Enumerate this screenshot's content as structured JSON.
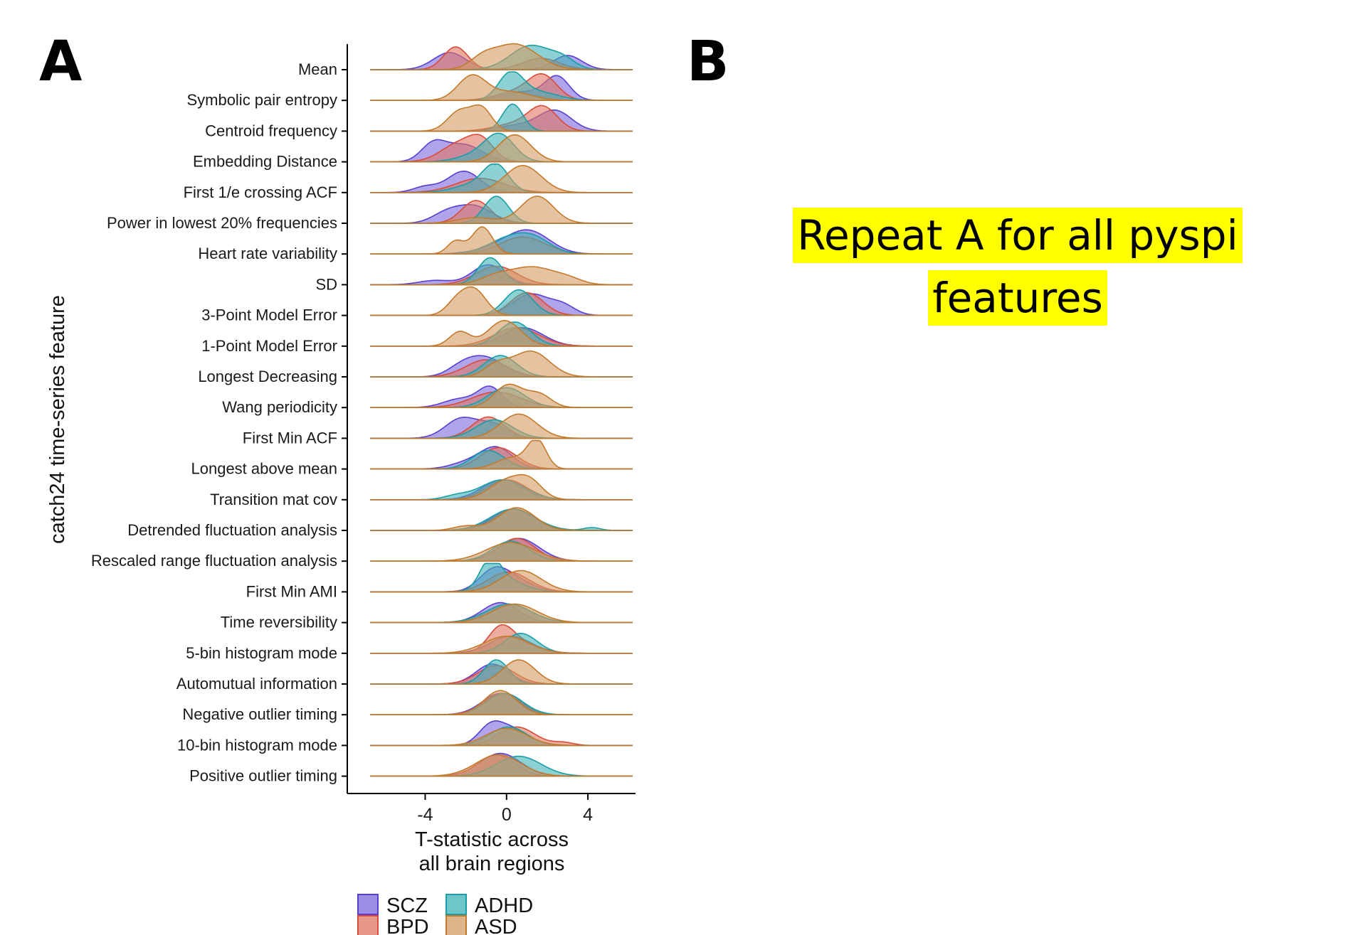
{
  "panels": {
    "a_label": "A",
    "b_label": "B"
  },
  "note": {
    "line1": "Repeat A for all pyspi",
    "line2": "features",
    "highlight_color": "#ffff00"
  },
  "chart_data": {
    "type": "ridgeline",
    "title": "",
    "ylabel": "catch24 time-series feature",
    "xlabel_lines": [
      "T-statistic across",
      "all brain regions"
    ],
    "xlim": [
      -7.2,
      6.2
    ],
    "xticks": [
      -4,
      0,
      4
    ],
    "xtick_labels": [
      "-4",
      "0",
      "4"
    ],
    "grid": false,
    "legend_placement": "bottom",
    "legend": [
      {
        "key": "SCZ",
        "label": "SCZ",
        "fill": "#7b68dd",
        "stroke": "#5b3fd1"
      },
      {
        "key": "ADHD",
        "label": "ADHD",
        "fill": "#3fb3b8",
        "stroke": "#1a9ea5"
      },
      {
        "key": "BPD",
        "label": "BPD",
        "fill": "#e07660",
        "stroke": "#d94c3a"
      },
      {
        "key": "ASD",
        "label": "ASD",
        "fill": "#d39b63",
        "stroke": "#c47a2c"
      }
    ],
    "series_order": [
      "SCZ",
      "BPD",
      "ADHD",
      "ASD"
    ],
    "features": [
      {
        "label": "Mean",
        "d": {
          "SCZ": [
            [
              -2.8,
              0.8,
              0.6
            ],
            [
              3.0,
              0.7,
              0.5
            ]
          ],
          "BPD": [
            [
              -2.5,
              0.6,
              0.8
            ],
            [
              1.7,
              0.9,
              0.4
            ]
          ],
          "ADHD": [
            [
              1.2,
              1.0,
              0.85
            ],
            [
              2.8,
              0.6,
              0.3
            ]
          ],
          "ASD": [
            [
              0.4,
              1.1,
              0.9
            ],
            [
              -1.2,
              0.6,
              0.3
            ]
          ]
        }
      },
      {
        "label": "Symbolic pair entropy",
        "d": {
          "SCZ": [
            [
              2.5,
              0.6,
              0.8
            ],
            [
              0.8,
              1.0,
              0.3
            ]
          ],
          "BPD": [
            [
              1.8,
              0.7,
              0.8
            ],
            [
              0.5,
              1.0,
              0.3
            ]
          ],
          "ADHD": [
            [
              0.2,
              0.6,
              0.9
            ],
            [
              1.5,
              1.0,
              0.3
            ]
          ],
          "ASD": [
            [
              -1.7,
              0.7,
              0.85
            ],
            [
              0.2,
              1.0,
              0.3
            ]
          ]
        }
      },
      {
        "label": "Centroid frequency",
        "d": {
          "SCZ": [
            [
              2.4,
              0.8,
              0.7
            ],
            [
              0.6,
              1.0,
              0.2
            ]
          ],
          "BPD": [
            [
              1.8,
              0.7,
              0.8
            ],
            [
              0.4,
              1.0,
              0.25
            ]
          ],
          "ADHD": [
            [
              0.3,
              0.5,
              0.95
            ]
          ],
          "ASD": [
            [
              -2.3,
              0.6,
              0.7
            ],
            [
              -1.2,
              0.5,
              0.75
            ]
          ]
        }
      },
      {
        "label": "Embedding Distance",
        "d": {
          "SCZ": [
            [
              -3.6,
              0.6,
              0.6
            ],
            [
              -2.1,
              0.9,
              0.6
            ]
          ],
          "BPD": [
            [
              -2.3,
              0.9,
              0.65
            ],
            [
              -1.2,
              0.6,
              0.6
            ]
          ],
          "ADHD": [
            [
              -0.3,
              0.7,
              0.8
            ],
            [
              -1.2,
              1.0,
              0.3
            ]
          ],
          "ASD": [
            [
              0.4,
              0.8,
              0.95
            ]
          ]
        }
      },
      {
        "label": "First 1/e crossing ACF",
        "d": {
          "SCZ": [
            [
              -2.1,
              0.8,
              0.75
            ],
            [
              -4.0,
              0.6,
              0.2
            ]
          ],
          "BPD": [
            [
              -1.3,
              1.2,
              0.5
            ]
          ],
          "ADHD": [
            [
              -0.5,
              0.6,
              0.85
            ],
            [
              -1.5,
              1.0,
              0.3
            ]
          ],
          "ASD": [
            [
              0.8,
              0.9,
              0.95
            ]
          ]
        }
      },
      {
        "label": "Power in lowest 20% frequencies",
        "d": {
          "SCZ": [
            [
              -1.6,
              0.9,
              0.6
            ],
            [
              -3.0,
              0.7,
              0.3
            ]
          ],
          "BPD": [
            [
              -1.5,
              0.7,
              0.8
            ]
          ],
          "ADHD": [
            [
              -0.5,
              0.6,
              0.95
            ]
          ],
          "ASD": [
            [
              1.5,
              0.8,
              0.95
            ],
            [
              -1.5,
              0.9,
              0.2
            ]
          ]
        }
      },
      {
        "label": "Heart rate variability",
        "d": {
          "SCZ": [
            [
              1.2,
              1.0,
              0.65
            ],
            [
              0.0,
              1.2,
              0.3
            ]
          ],
          "BPD": [
            [
              0.8,
              1.1,
              0.6
            ]
          ],
          "ADHD": [
            [
              0.3,
              1.1,
              0.6
            ],
            [
              1.5,
              0.8,
              0.3
            ]
          ],
          "ASD": [
            [
              -1.2,
              0.5,
              0.95
            ],
            [
              -2.5,
              0.4,
              0.45
            ]
          ]
        }
      },
      {
        "label": "SD",
        "d": {
          "SCZ": [
            [
              -0.9,
              0.8,
              0.7
            ],
            [
              -3.5,
              0.8,
              0.15
            ]
          ],
          "BPD": [
            [
              -0.5,
              1.0,
              0.65
            ]
          ],
          "ADHD": [
            [
              -0.8,
              0.6,
              0.95
            ]
          ],
          "ASD": [
            [
              1.3,
              1.0,
              0.6
            ],
            [
              -0.5,
              0.8,
              0.3
            ],
            [
              3.0,
              0.7,
              0.2
            ]
          ]
        }
      },
      {
        "label": "3-Point Model Error",
        "d": {
          "SCZ": [
            [
              1.2,
              0.9,
              0.75
            ],
            [
              2.8,
              0.6,
              0.3
            ]
          ],
          "BPD": [
            [
              1.0,
              0.8,
              0.8
            ]
          ],
          "ADHD": [
            [
              0.6,
              0.7,
              0.9
            ]
          ],
          "ASD": [
            [
              -1.6,
              0.6,
              0.9
            ],
            [
              -2.5,
              0.5,
              0.4
            ]
          ]
        }
      },
      {
        "label": "1-Point Model Error",
        "d": {
          "SCZ": [
            [
              0.8,
              1.0,
              0.65
            ]
          ],
          "BPD": [
            [
              0.5,
              1.1,
              0.65
            ]
          ],
          "ADHD": [
            [
              0.4,
              0.8,
              0.85
            ]
          ],
          "ASD": [
            [
              -0.1,
              0.8,
              0.9
            ],
            [
              -2.3,
              0.5,
              0.5
            ]
          ]
        }
      },
      {
        "label": "Longest Decreasing",
        "d": {
          "SCZ": [
            [
              -1.0,
              0.9,
              0.65
            ],
            [
              -2.2,
              0.7,
              0.3
            ]
          ],
          "BPD": [
            [
              -1.0,
              1.0,
              0.6
            ]
          ],
          "ADHD": [
            [
              -0.3,
              0.8,
              0.75
            ]
          ],
          "ASD": [
            [
              1.2,
              0.9,
              0.9
            ],
            [
              -0.5,
              0.6,
              0.4
            ]
          ]
        }
      },
      {
        "label": "Wang periodicity",
        "d": {
          "SCZ": [
            [
              -0.8,
              0.6,
              0.7
            ],
            [
              -2.3,
              0.8,
              0.3
            ]
          ],
          "BPD": [
            [
              -0.5,
              1.2,
              0.55
            ]
          ],
          "ADHD": [
            [
              0.0,
              0.9,
              0.7
            ]
          ],
          "ASD": [
            [
              0.1,
              0.7,
              0.8
            ],
            [
              1.6,
              0.6,
              0.45
            ]
          ]
        }
      },
      {
        "label": "First Min ACF",
        "d": {
          "SCZ": [
            [
              -2.2,
              0.8,
              0.7
            ],
            [
              -0.6,
              0.7,
              0.45
            ]
          ],
          "BPD": [
            [
              -0.9,
              0.8,
              0.75
            ]
          ],
          "ADHD": [
            [
              -0.6,
              0.9,
              0.65
            ]
          ],
          "ASD": [
            [
              0.6,
              0.9,
              0.85
            ]
          ]
        }
      },
      {
        "label": "Longest above mean",
        "d": {
          "SCZ": [
            [
              -0.5,
              0.8,
              0.75
            ],
            [
              -2.0,
              0.8,
              0.2
            ]
          ],
          "BPD": [
            [
              -0.4,
              0.9,
              0.75
            ]
          ],
          "ADHD": [
            [
              -0.9,
              0.8,
              0.65
            ]
          ],
          "ASD": [
            [
              1.5,
              0.45,
              0.95
            ],
            [
              0.3,
              0.8,
              0.4
            ]
          ]
        }
      },
      {
        "label": "Transition mat cov",
        "d": {
          "SCZ": [
            [
              -0.2,
              1.0,
              0.7
            ]
          ],
          "BPD": [
            [
              0.0,
              1.0,
              0.7
            ]
          ],
          "ADHD": [
            [
              -0.2,
              1.1,
              0.7
            ],
            [
              -2.5,
              0.6,
              0.12
            ]
          ],
          "ASD": [
            [
              0.1,
              0.9,
              0.7
            ],
            [
              1.2,
              0.6,
              0.45
            ]
          ]
        }
      },
      {
        "label": "Detrended fluctuation analysis",
        "d": {
          "SCZ": [
            [
              0.3,
              1.0,
              0.75
            ]
          ],
          "BPD": [
            [
              0.4,
              1.0,
              0.75
            ]
          ],
          "ADHD": [
            [
              0.3,
              1.1,
              0.75
            ],
            [
              4.2,
              0.4,
              0.1
            ]
          ],
          "ASD": [
            [
              0.5,
              0.9,
              0.8
            ],
            [
              -2.0,
              0.6,
              0.15
            ]
          ]
        }
      },
      {
        "label": "Rescaled range fluctuation analysis",
        "d": {
          "SCZ": [
            [
              0.6,
              1.0,
              0.8
            ]
          ],
          "BPD": [
            [
              0.5,
              0.9,
              0.8
            ]
          ],
          "ADHD": [
            [
              0.2,
              0.9,
              0.7
            ]
          ],
          "ASD": [
            [
              0.2,
              1.2,
              0.65
            ]
          ]
        }
      },
      {
        "label": "First Min AMI",
        "d": {
          "SCZ": [
            [
              -0.7,
              0.7,
              0.6
            ],
            [
              0.3,
              0.9,
              0.45
            ]
          ],
          "BPD": [
            [
              0.1,
              1.0,
              0.7
            ]
          ],
          "ADHD": [
            [
              -0.8,
              0.5,
              0.95
            ],
            [
              0.0,
              0.9,
              0.4
            ]
          ],
          "ASD": [
            [
              0.7,
              1.0,
              0.75
            ]
          ]
        }
      },
      {
        "label": "Time reversibility",
        "d": {
          "SCZ": [
            [
              -0.3,
              0.9,
              0.7
            ]
          ],
          "BPD": [
            [
              0.1,
              1.1,
              0.65
            ]
          ],
          "ADHD": [
            [
              0.1,
              1.1,
              0.65
            ]
          ],
          "ASD": [
            [
              0.4,
              1.1,
              0.65
            ]
          ]
        }
      },
      {
        "label": "5-bin histogram mode",
        "d": {
          "SCZ": [
            [
              0.2,
              1.0,
              0.6
            ]
          ],
          "BPD": [
            [
              -0.3,
              0.6,
              0.7
            ],
            [
              0.5,
              1.0,
              0.4
            ]
          ],
          "ADHD": [
            [
              0.7,
              0.8,
              0.7
            ]
          ],
          "ASD": [
            [
              0.0,
              1.1,
              0.6
            ]
          ]
        }
      },
      {
        "label": "Automutual information",
        "d": {
          "SCZ": [
            [
              -0.7,
              0.8,
              0.7
            ]
          ],
          "BPD": [
            [
              -0.5,
              0.9,
              0.65
            ]
          ],
          "ADHD": [
            [
              -0.5,
              0.6,
              0.85
            ]
          ],
          "ASD": [
            [
              0.6,
              0.8,
              0.85
            ]
          ]
        }
      },
      {
        "label": "Negative outlier timing",
        "d": {
          "SCZ": [
            [
              -0.3,
              0.9,
              0.75
            ]
          ],
          "BPD": [
            [
              -0.2,
              0.9,
              0.75
            ]
          ],
          "ADHD": [
            [
              -0.1,
              0.9,
              0.75
            ]
          ],
          "ASD": [
            [
              -0.3,
              0.8,
              0.85
            ]
          ]
        }
      },
      {
        "label": "10-bin histogram mode",
        "d": {
          "SCZ": [
            [
              -0.8,
              0.6,
              0.6
            ],
            [
              0.3,
              0.8,
              0.55
            ]
          ],
          "BPD": [
            [
              0.5,
              0.9,
              0.65
            ],
            [
              2.8,
              0.5,
              0.1
            ]
          ],
          "ADHD": [
            [
              0.1,
              0.9,
              0.65
            ]
          ],
          "ASD": [
            [
              0.0,
              1.0,
              0.6
            ]
          ]
        }
      },
      {
        "label": "Positive outlier timing",
        "d": {
          "SCZ": [
            [
              -0.3,
              1.0,
              0.8
            ]
          ],
          "BPD": [
            [
              -0.5,
              0.9,
              0.75
            ]
          ],
          "ADHD": [
            [
              0.6,
              1.1,
              0.7
            ]
          ],
          "ASD": [
            [
              -0.4,
              1.1,
              0.75
            ]
          ]
        }
      }
    ]
  }
}
